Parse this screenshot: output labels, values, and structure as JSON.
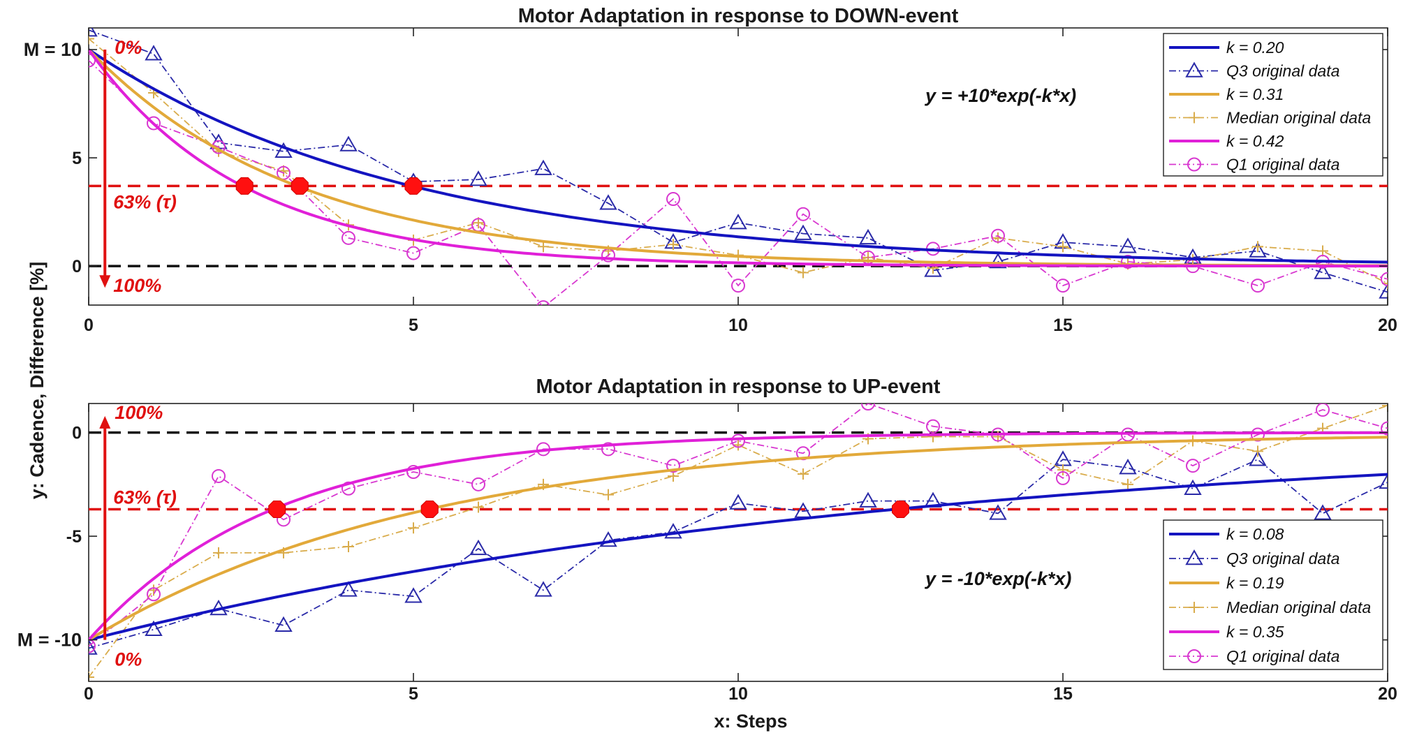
{
  "chart_data": [
    {
      "id": "down",
      "type": "line",
      "title": "Motor Adaptation in response to DOWN-event",
      "xlabel": "x: Steps",
      "ylabel": "y: Cadence, Difference [%]",
      "xlim": [
        0,
        20
      ],
      "ylim": [
        -1.8,
        11
      ],
      "xticks": [
        "0",
        "5",
        "10",
        "15",
        "20"
      ],
      "yticks": [
        {
          "value": 0,
          "label": "0"
        },
        {
          "value": 5,
          "label": "5"
        },
        {
          "value": 10,
          "label": "M = 10"
        }
      ],
      "equation": "y = +10*exp(-k*x)",
      "amplitude": 10,
      "tau_level": 3.7,
      "arrow": {
        "x": 0.25,
        "from": 10,
        "to": -1,
        "top_label": "0%",
        "mid_label": "63% (τ)",
        "bottom_label": "100%"
      },
      "series": [
        {
          "name": "k = 0.20",
          "kind": "fit",
          "k": 0.2,
          "color": "#1414c0"
        },
        {
          "name": "Q3 original data",
          "kind": "data",
          "marker": "triangle",
          "color": "#2a2aa8",
          "values": [
            10.9,
            9.8,
            5.7,
            5.3,
            5.6,
            3.9,
            4.0,
            4.5,
            2.9,
            1.1,
            2.0,
            1.5,
            1.3,
            -0.2,
            0.2,
            1.1,
            0.9,
            0.4,
            0.7,
            -0.3,
            -1.2
          ]
        },
        {
          "name": "k = 0.31",
          "kind": "fit",
          "k": 0.31,
          "color": "#e2a93a"
        },
        {
          "name": "Median original data",
          "kind": "data",
          "marker": "plus",
          "color": "#d9ac4c",
          "values": [
            10.5,
            8.0,
            5.3,
            4.4,
            1.9,
            1.2,
            2.0,
            0.9,
            0.7,
            1.0,
            0.5,
            -0.3,
            0.4,
            -0.1,
            1.3,
            0.9,
            0.1,
            0.3,
            0.9,
            0.7,
            -0.8
          ]
        },
        {
          "name": "k = 0.42",
          "kind": "fit",
          "k": 0.42,
          "color": "#e020d8"
        },
        {
          "name": "Q1 original data",
          "kind": "data",
          "marker": "circle",
          "color": "#d838d0",
          "values": [
            9.5,
            6.6,
            5.5,
            4.3,
            1.3,
            0.6,
            1.9,
            -1.9,
            0.5,
            3.1,
            -0.9,
            2.4,
            0.4,
            0.8,
            1.4,
            -0.9,
            0.2,
            0.0,
            -0.9,
            0.2,
            -0.6
          ]
        }
      ],
      "tau_points": [
        {
          "x": 2.4,
          "y": 3.7
        },
        {
          "x": 3.25,
          "y": 3.7
        },
        {
          "x": 5.0,
          "y": 3.7
        }
      ]
    },
    {
      "id": "up",
      "type": "line",
      "title": "Motor Adaptation in response to UP-event",
      "xlabel": "x: Steps",
      "ylabel": "y: Cadence, Difference [%]",
      "xlim": [
        0,
        20
      ],
      "ylim": [
        -12,
        1.4
      ],
      "xticks": [
        "0",
        "5",
        "10",
        "15",
        "20"
      ],
      "yticks": [
        {
          "value": 0,
          "label": "0"
        },
        {
          "value": -5,
          "label": "-5"
        },
        {
          "value": -10,
          "label": "M = -10"
        }
      ],
      "equation": "y = -10*exp(-k*x)",
      "amplitude": -10,
      "tau_level": -3.7,
      "arrow": {
        "x": 0.25,
        "from": -10,
        "to": 0.8,
        "top_label": "100%",
        "mid_label": "63% (τ)",
        "bottom_label": "0%"
      },
      "series": [
        {
          "name": "k = 0.08",
          "kind": "fit",
          "k": 0.08,
          "color": "#1414c0"
        },
        {
          "name": "Q3 original data",
          "kind": "data",
          "marker": "triangle",
          "color": "#2a2aa8",
          "values": [
            -10.4,
            -9.5,
            -8.5,
            -9.3,
            -7.6,
            -7.9,
            -5.6,
            -7.6,
            -5.2,
            -4.8,
            -3.4,
            -3.8,
            -3.3,
            -3.3,
            -3.9,
            -1.3,
            -1.7,
            -2.7,
            -1.3,
            -3.9,
            -2.4
          ]
        },
        {
          "name": "k = 0.19",
          "kind": "fit",
          "k": 0.19,
          "color": "#e2a93a"
        },
        {
          "name": "Median original data",
          "kind": "data",
          "marker": "plus",
          "color": "#d9ac4c",
          "values": [
            -11.8,
            -7.6,
            -5.8,
            -5.8,
            -5.5,
            -4.6,
            -3.6,
            -2.5,
            -3.0,
            -2.1,
            -0.6,
            -2.0,
            -0.3,
            -0.2,
            -0.2,
            -1.8,
            -2.5,
            -0.4,
            -0.9,
            0.2,
            1.3
          ]
        },
        {
          "name": "k = 0.35",
          "kind": "fit",
          "k": 0.35,
          "color": "#e020d8"
        },
        {
          "name": "Q1 original data",
          "kind": "data",
          "marker": "circle",
          "color": "#d838d0",
          "values": [
            -10.3,
            -7.8,
            -2.1,
            -4.2,
            -2.7,
            -1.9,
            -2.5,
            -0.8,
            -0.8,
            -1.6,
            -0.4,
            -1.0,
            1.4,
            0.3,
            -0.1,
            -2.2,
            -0.1,
            -1.6,
            -0.1,
            1.1,
            0.2
          ]
        }
      ],
      "tau_points": [
        {
          "x": 2.9,
          "y": -3.7
        },
        {
          "x": 5.25,
          "y": -3.7
        },
        {
          "x": 12.5,
          "y": -3.7
        }
      ]
    }
  ]
}
